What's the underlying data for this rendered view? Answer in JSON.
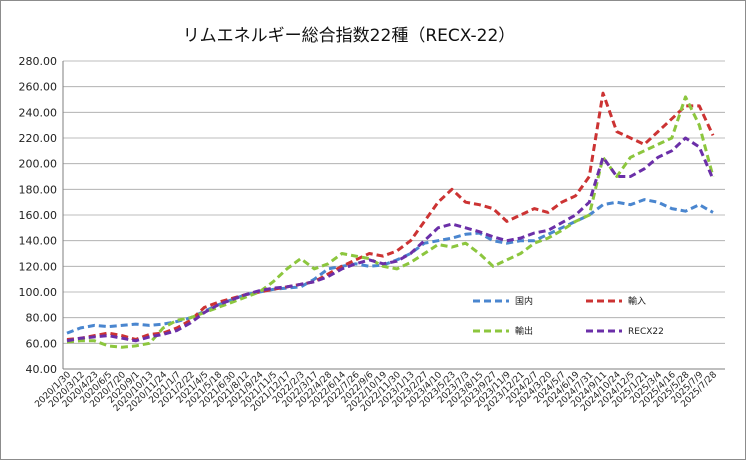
{
  "chart_data": {
    "type": "line",
    "title": "リムエネルギー総合指数22種（RECX-22）",
    "ylim": [
      40,
      280
    ],
    "yticks": [
      "40.00",
      "60.00",
      "80.00",
      "100.00",
      "120.00",
      "140.00",
      "160.00",
      "180.00",
      "200.00",
      "220.00",
      "240.00",
      "260.00",
      "280.00"
    ],
    "grid": true,
    "legend_position": "lower-right",
    "x_labels": [
      "2020/1/30",
      "2020/3/12",
      "2020/4/23",
      "2020/6/5",
      "2020/7/20",
      "2020/9/1",
      "2020/10/13",
      "2020/11/24",
      "2021/1/7",
      "2021/2/22",
      "2021/4/5",
      "2021/5/18",
      "2021/6/30",
      "2021/8/12",
      "2021/9/24",
      "2021/11/5",
      "2021/12/17",
      "2022/2/3",
      "2022/3/17",
      "2022/4/28",
      "2022/6/14",
      "2022/7/26",
      "2022/9/6",
      "2022/10/19",
      "2022/11/30",
      "2023/1/13",
      "2023/2/27",
      "2023/4/10",
      "2023/5/23",
      "2023/7/3",
      "2023/8/15",
      "2023/9/27",
      "2023/11/9",
      "2023/12/21",
      "2024/2/7",
      "2024/3/20",
      "2024/5/7",
      "2024/6/19",
      "2024/7/31",
      "2024/9/11",
      "2024/10/24",
      "2024/12/5",
      "2025/1/21",
      "2025/3/4",
      "2025/4/16",
      "2025/5/28",
      "2025/7/9",
      "2025/7/28"
    ],
    "series": [
      {
        "name": "国内",
        "color": "#4a86cf",
        "values": [
          68,
          72,
          74,
          73,
          74,
          75,
          74,
          75,
          77,
          80,
          85,
          90,
          94,
          98,
          100,
          102,
          103,
          104,
          110,
          118,
          120,
          122,
          120,
          121,
          125,
          130,
          138,
          140,
          142,
          145,
          146,
          140,
          138,
          140,
          140,
          145,
          150,
          155,
          160,
          168,
          170,
          168,
          172,
          170,
          165,
          163,
          168,
          162
        ]
      },
      {
        "name": "輸入",
        "color": "#cc3333",
        "values": [
          63,
          64,
          66,
          68,
          66,
          63,
          67,
          68,
          72,
          78,
          88,
          92,
          95,
          98,
          100,
          102,
          104,
          106,
          108,
          114,
          120,
          125,
          130,
          128,
          132,
          140,
          155,
          170,
          180,
          170,
          168,
          165,
          155,
          160,
          165,
          162,
          170,
          175,
          190,
          255,
          225,
          220,
          215,
          225,
          235,
          245,
          245,
          222
        ]
      },
      {
        "name": "輸出",
        "color": "#8cc63e",
        "values": [
          61,
          62,
          62,
          58,
          57,
          58,
          60,
          72,
          78,
          80,
          84,
          88,
          92,
          96,
          100,
          108,
          118,
          126,
          118,
          122,
          130,
          128,
          126,
          120,
          118,
          123,
          130,
          137,
          135,
          138,
          130,
          120,
          125,
          130,
          138,
          142,
          148,
          155,
          160,
          205,
          190,
          205,
          210,
          215,
          220,
          252,
          230,
          190
        ]
      },
      {
        "name": "RECX22",
        "color": "#6b2fa8",
        "values": [
          62,
          64,
          65,
          66,
          64,
          62,
          65,
          67,
          70,
          76,
          84,
          90,
          94,
          98,
          101,
          103,
          104,
          106,
          108,
          112,
          118,
          122,
          125,
          122,
          124,
          130,
          140,
          150,
          153,
          150,
          147,
          143,
          140,
          142,
          146,
          148,
          154,
          160,
          170,
          205,
          190,
          190,
          196,
          205,
          210,
          220,
          213,
          188
        ]
      }
    ]
  }
}
